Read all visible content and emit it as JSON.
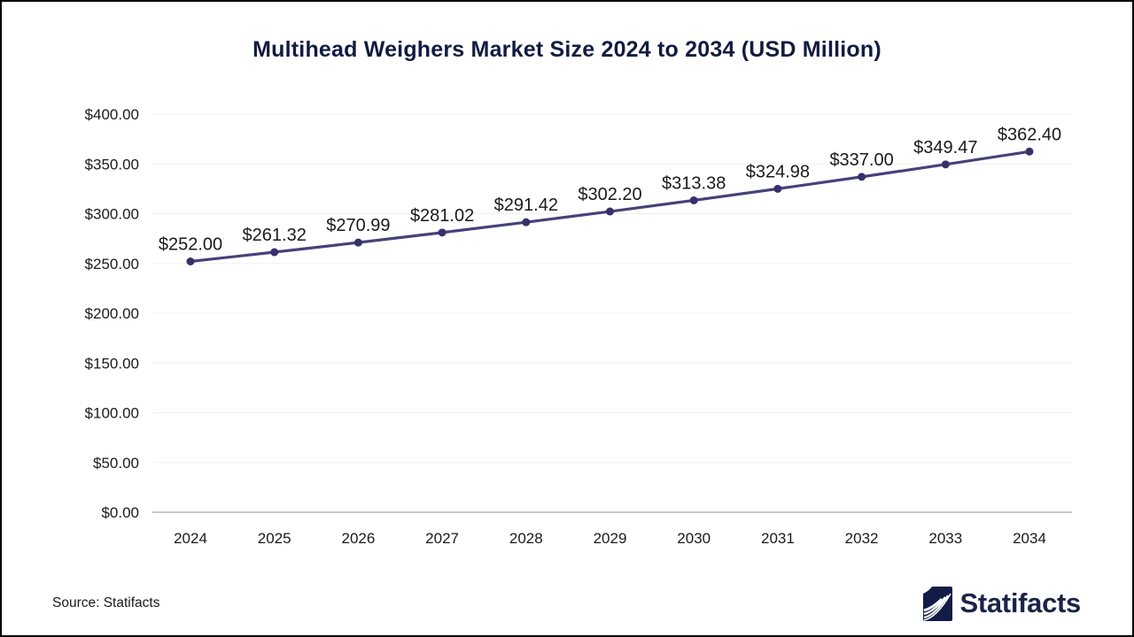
{
  "page": {
    "source_label": "Source: Statifacts",
    "brand_name": "Statifacts"
  },
  "chart_data": {
    "type": "line",
    "title": "Multihead Weighers Market Size 2024 to 2034 (USD Million)",
    "categories": [
      "2024",
      "2025",
      "2026",
      "2027",
      "2028",
      "2029",
      "2030",
      "2031",
      "2032",
      "2033",
      "2034"
    ],
    "values": [
      252.0,
      261.32,
      270.99,
      281.02,
      291.42,
      302.2,
      313.38,
      324.98,
      337.0,
      349.47,
      362.4
    ],
    "point_labels": [
      "$252.00",
      "$261.32",
      "$270.99",
      "$281.02",
      "$291.42",
      "$302.20",
      "$313.38",
      "$324.98",
      "$337.00",
      "$349.47",
      "$362.40"
    ],
    "y_tick_labels": [
      "$400.00",
      "$350.00",
      "$300.00",
      "$250.00",
      "$200.00",
      "$150.00",
      "$100.00",
      "$50.00",
      "$0.00"
    ],
    "y_tick_values": [
      400,
      350,
      300,
      250,
      200,
      150,
      100,
      50,
      0
    ],
    "ylim": [
      0,
      400
    ],
    "xlabel": "",
    "ylabel": "",
    "grid": "horizontal",
    "legend": "none",
    "colors": {
      "title": "#121c40",
      "line": "#45427a",
      "marker": "#35316b",
      "label": "#1a1a1a",
      "gridline": "#f0f0f0",
      "axis_line": "#c9c9c9",
      "brand_navy": "#131c47",
      "brand_text": "#1b2447"
    }
  }
}
